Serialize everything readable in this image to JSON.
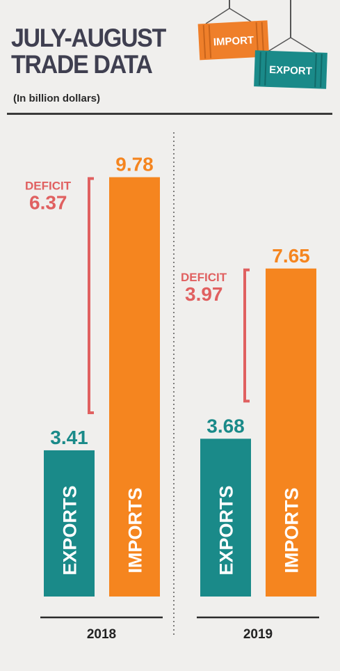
{
  "title_line1": "JULY-AUGUST",
  "title_line2": "TRADE DATA",
  "subtitle": "(In billion dollars)",
  "icons": {
    "import_container": {
      "label": "IMPORT",
      "color": "#ef7f2a"
    },
    "export_container": {
      "label": "EXPORT",
      "color": "#1a8a89"
    }
  },
  "colors": {
    "exports": "#1a8a89",
    "imports": "#f5851f",
    "deficit": "#e06060",
    "text_dark": "#3f3f50"
  },
  "chart_data": {
    "type": "bar",
    "categories": [
      "2018",
      "2019"
    ],
    "series": [
      {
        "name": "EXPORTS",
        "values": [
          3.41,
          3.68
        ]
      },
      {
        "name": "IMPORTS",
        "values": [
          9.78,
          7.65
        ]
      }
    ],
    "deficit": {
      "label": "DEFICIT",
      "values": [
        6.37,
        3.97
      ]
    },
    "value_labels": {
      "exports": [
        "3.41",
        "3.68"
      ],
      "imports": [
        "9.78",
        "7.65"
      ],
      "deficit": [
        "6.37",
        "3.97"
      ]
    },
    "ylim": [
      0,
      10
    ],
    "grid": false
  }
}
